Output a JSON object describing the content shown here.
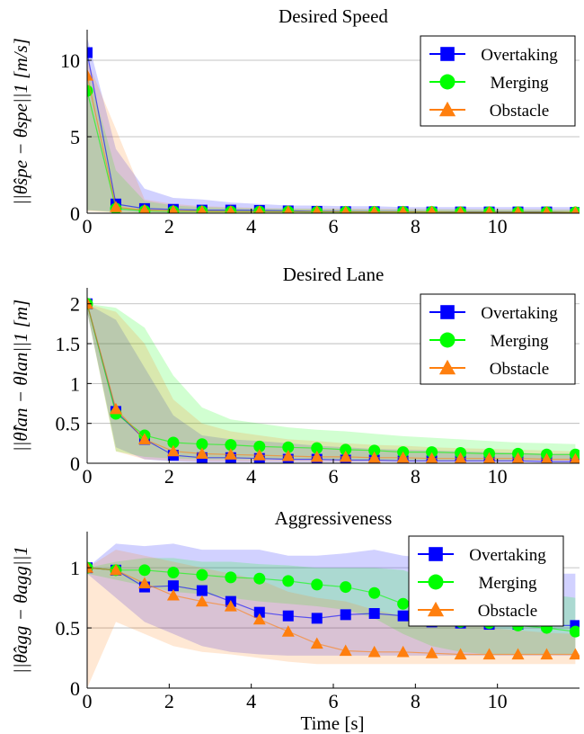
{
  "chart_data": [
    {
      "type": "line",
      "title": "Desired Speed",
      "ylabel": "||θ̂spe − θspe||1 [m/s]",
      "xlabel": "",
      "xlim": [
        0,
        12
      ],
      "ylim": [
        0,
        12
      ],
      "xticks": [
        0,
        2,
        4,
        6,
        8,
        10
      ],
      "yticks": [
        0,
        5,
        10
      ],
      "grid": "horizontal",
      "legend_position": "top-right",
      "series": [
        {
          "name": "Overtaking",
          "color": "#0000ff",
          "marker": "square",
          "x": [
            0,
            0.7,
            1.4,
            2.1,
            2.8,
            3.5,
            4.2,
            4.9,
            5.6,
            6.3,
            7.0,
            7.7,
            8.4,
            9.1,
            9.8,
            10.5,
            11.2,
            11.9
          ],
          "y": [
            10.5,
            0.6,
            0.3,
            0.25,
            0.2,
            0.2,
            0.18,
            0.15,
            0.12,
            0.1,
            0.1,
            0.1,
            0.08,
            0.08,
            0.08,
            0.08,
            0.08,
            0.05
          ],
          "band_lo": [
            0.2,
            0.1,
            0.05,
            0.05,
            0.05,
            0.05,
            0.05,
            0.05,
            0.05,
            0.05,
            0.05,
            0.05,
            0.05,
            0.05,
            0.05,
            0.05,
            0.05,
            0.05
          ],
          "band_hi": [
            11.5,
            4.2,
            1.6,
            1.0,
            0.9,
            0.7,
            0.6,
            0.5,
            0.5,
            0.45,
            0.45,
            0.4,
            0.4,
            0.4,
            0.4,
            0.4,
            0.4,
            0.4
          ]
        },
        {
          "name": "Merging",
          "color": "#00ff00",
          "marker": "circle",
          "x": [
            0,
            0.7,
            1.4,
            2.1,
            2.8,
            3.5,
            4.2,
            4.9,
            5.6,
            6.3,
            7.0,
            7.7,
            8.4,
            9.1,
            9.8,
            10.5,
            11.2,
            11.9
          ],
          "y": [
            8.0,
            0.3,
            0.15,
            0.12,
            0.12,
            0.1,
            0.1,
            0.1,
            0.08,
            0.08,
            0.08,
            0.08,
            0.08,
            0.06,
            0.06,
            0.06,
            0.06,
            0.06
          ],
          "band_lo": [
            0.2,
            0.05,
            0.03,
            0.03,
            0.03,
            0.03,
            0.03,
            0.03,
            0.03,
            0.03,
            0.03,
            0.03,
            0.03,
            0.03,
            0.03,
            0.03,
            0.03,
            0.03
          ],
          "band_hi": [
            9.5,
            2.8,
            0.8,
            0.5,
            0.4,
            0.35,
            0.3,
            0.3,
            0.28,
            0.26,
            0.25,
            0.25,
            0.24,
            0.24,
            0.23,
            0.23,
            0.22,
            0.22
          ]
        },
        {
          "name": "Obstacle",
          "color": "#ff7f0e",
          "marker": "triangle",
          "x": [
            0,
            0.7,
            1.4,
            2.1,
            2.8,
            3.5,
            4.2,
            4.9,
            5.6,
            6.3,
            7.0,
            7.7,
            8.4,
            9.1,
            9.8,
            10.5,
            11.2,
            11.9
          ],
          "y": [
            9.0,
            0.4,
            0.2,
            0.15,
            0.12,
            0.1,
            0.1,
            0.1,
            0.1,
            0.08,
            0.08,
            0.08,
            0.08,
            0.06,
            0.06,
            0.06,
            0.06,
            0.06
          ],
          "band_lo": [
            0.1,
            0.05,
            0.03,
            0.03,
            0.03,
            0.03,
            0.03,
            0.03,
            0.03,
            0.03,
            0.03,
            0.03,
            0.03,
            0.03,
            0.03,
            0.03,
            0.03,
            0.03
          ],
          "band_hi": [
            10.0,
            5.5,
            0.9,
            0.6,
            0.45,
            0.4,
            0.35,
            0.3,
            0.3,
            0.3,
            0.28,
            0.28,
            0.26,
            0.25,
            0.25,
            0.25,
            0.24,
            0.24
          ]
        }
      ]
    },
    {
      "type": "line",
      "title": "Desired Lane",
      "ylabel": "||θ̂lan − θlan||1 [m]",
      "xlabel": "",
      "xlim": [
        0,
        12
      ],
      "ylim": [
        0,
        2.2
      ],
      "xticks": [
        0,
        2,
        4,
        6,
        8,
        10
      ],
      "yticks": [
        0,
        0.5,
        1,
        1.5,
        2
      ],
      "grid": "horizontal",
      "legend_position": "top-right",
      "series": [
        {
          "name": "Overtaking",
          "color": "#0000ff",
          "marker": "square",
          "x": [
            0,
            0.7,
            1.4,
            2.1,
            2.8,
            3.5,
            4.2,
            4.9,
            5.6,
            6.3,
            7.0,
            7.7,
            8.4,
            9.1,
            9.8,
            10.5,
            11.2,
            11.9
          ],
          "y": [
            2.0,
            0.65,
            0.3,
            0.1,
            0.07,
            0.07,
            0.06,
            0.05,
            0.05,
            0.04,
            0.04,
            0.03,
            0.03,
            0.03,
            0.03,
            0.03,
            0.02,
            0.02
          ],
          "band_lo": [
            1.9,
            0.2,
            0.05,
            0.02,
            0.01,
            0.01,
            0.01,
            0.01,
            0.01,
            0.01,
            0.01,
            0.01,
            0.01,
            0.01,
            0.01,
            0.01,
            0.01,
            0.01
          ],
          "band_hi": [
            2.0,
            1.8,
            1.2,
            0.6,
            0.35,
            0.3,
            0.28,
            0.25,
            0.22,
            0.2,
            0.18,
            0.17,
            0.16,
            0.15,
            0.14,
            0.13,
            0.12,
            0.12
          ]
        },
        {
          "name": "Merging",
          "color": "#00ff00",
          "marker": "circle",
          "x": [
            0,
            0.7,
            1.4,
            2.1,
            2.8,
            3.5,
            4.2,
            4.9,
            5.6,
            6.3,
            7.0,
            7.7,
            8.4,
            9.1,
            9.8,
            10.5,
            11.2,
            11.9
          ],
          "y": [
            2.0,
            0.62,
            0.35,
            0.26,
            0.24,
            0.23,
            0.21,
            0.2,
            0.19,
            0.17,
            0.16,
            0.14,
            0.14,
            0.13,
            0.12,
            0.12,
            0.11,
            0.11
          ],
          "band_lo": [
            1.9,
            0.15,
            0.08,
            0.06,
            0.05,
            0.05,
            0.05,
            0.05,
            0.05,
            0.04,
            0.04,
            0.04,
            0.04,
            0.04,
            0.04,
            0.04,
            0.04,
            0.04
          ],
          "band_hi": [
            2.0,
            1.95,
            1.7,
            1.1,
            0.7,
            0.55,
            0.5,
            0.45,
            0.42,
            0.4,
            0.37,
            0.34,
            0.32,
            0.3,
            0.28,
            0.26,
            0.25,
            0.24
          ]
        },
        {
          "name": "Obstacle",
          "color": "#ff7f0e",
          "marker": "triangle",
          "x": [
            0,
            0.7,
            1.4,
            2.1,
            2.8,
            3.5,
            4.2,
            4.9,
            5.6,
            6.3,
            7.0,
            7.7,
            8.4,
            9.1,
            9.8,
            10.5,
            11.2,
            11.9
          ],
          "y": [
            2.0,
            0.68,
            0.3,
            0.15,
            0.12,
            0.11,
            0.1,
            0.09,
            0.08,
            0.08,
            0.07,
            0.07,
            0.06,
            0.06,
            0.06,
            0.06,
            0.05,
            0.05
          ],
          "band_lo": [
            1.9,
            0.15,
            0.05,
            0.03,
            0.02,
            0.02,
            0.02,
            0.02,
            0.02,
            0.02,
            0.02,
            0.02,
            0.02,
            0.02,
            0.02,
            0.02,
            0.02,
            0.02
          ],
          "band_hi": [
            2.0,
            1.9,
            1.5,
            0.8,
            0.5,
            0.4,
            0.35,
            0.3,
            0.28,
            0.25,
            0.23,
            0.22,
            0.2,
            0.19,
            0.18,
            0.17,
            0.16,
            0.15
          ]
        }
      ]
    },
    {
      "type": "line",
      "title": "Aggressiveness",
      "ylabel": "||θ̂agg − θagg||1",
      "xlabel": "Time [s]",
      "xlim": [
        0,
        12
      ],
      "ylim": [
        0,
        1.3
      ],
      "xticks": [
        0,
        2,
        4,
        6,
        8,
        10
      ],
      "yticks": [
        0,
        0.5,
        1
      ],
      "grid": "horizontal",
      "legend_position": "top-right",
      "series": [
        {
          "name": "Overtaking",
          "color": "#0000ff",
          "marker": "square",
          "x": [
            0,
            0.7,
            1.4,
            2.1,
            2.8,
            3.5,
            4.2,
            4.9,
            5.6,
            6.3,
            7.0,
            7.7,
            8.4,
            9.1,
            9.8,
            10.5,
            11.2,
            11.9
          ],
          "y": [
            1.0,
            0.98,
            0.84,
            0.85,
            0.81,
            0.72,
            0.63,
            0.6,
            0.58,
            0.61,
            0.62,
            0.6,
            0.55,
            0.54,
            0.53,
            0.53,
            0.52,
            0.52
          ],
          "band_lo": [
            0.95,
            0.75,
            0.55,
            0.45,
            0.35,
            0.3,
            0.28,
            0.27,
            0.27,
            0.27,
            0.27,
            0.27,
            0.27,
            0.27,
            0.27,
            0.27,
            0.27,
            0.27
          ],
          "band_hi": [
            1.0,
            1.2,
            1.18,
            1.2,
            1.15,
            1.15,
            1.15,
            1.1,
            1.1,
            1.12,
            1.15,
            1.1,
            1.08,
            1.05,
            1.0,
            0.95,
            0.95,
            0.95
          ]
        },
        {
          "name": "Merging",
          "color": "#00ff00",
          "marker": "circle",
          "x": [
            0,
            0.7,
            1.4,
            2.1,
            2.8,
            3.5,
            4.2,
            4.9,
            5.6,
            6.3,
            7.0,
            7.7,
            8.4,
            9.1,
            9.8,
            10.5,
            11.2,
            11.9
          ],
          "y": [
            1.0,
            0.98,
            0.98,
            0.96,
            0.94,
            0.92,
            0.91,
            0.89,
            0.86,
            0.84,
            0.79,
            0.7,
            0.6,
            0.55,
            0.54,
            0.52,
            0.5,
            0.47
          ],
          "band_lo": [
            0.95,
            0.9,
            0.85,
            0.8,
            0.78,
            0.75,
            0.72,
            0.7,
            0.68,
            0.65,
            0.58,
            0.45,
            0.35,
            0.3,
            0.28,
            0.28,
            0.28,
            0.28
          ],
          "band_hi": [
            1.0,
            1.05,
            1.08,
            1.08,
            1.05,
            1.05,
            1.03,
            1.02,
            1.0,
            1.0,
            1.0,
            0.98,
            0.9,
            0.85,
            0.82,
            0.8,
            0.78,
            0.75
          ]
        },
        {
          "name": "Obstacle",
          "color": "#ff7f0e",
          "marker": "triangle",
          "x": [
            0,
            0.7,
            1.4,
            2.1,
            2.8,
            3.5,
            4.2,
            4.9,
            5.6,
            6.3,
            7.0,
            7.7,
            8.4,
            9.1,
            9.8,
            10.5,
            11.2,
            11.9
          ],
          "y": [
            1.0,
            0.98,
            0.87,
            0.77,
            0.72,
            0.68,
            0.57,
            0.47,
            0.37,
            0.31,
            0.3,
            0.3,
            0.29,
            0.28,
            0.28,
            0.28,
            0.28,
            0.28
          ],
          "band_lo": [
            0.0,
            0.55,
            0.45,
            0.35,
            0.3,
            0.28,
            0.25,
            0.22,
            0.2,
            0.2,
            0.2,
            0.2,
            0.2,
            0.2,
            0.2,
            0.2,
            0.2,
            0.2
          ],
          "band_hi": [
            1.0,
            1.15,
            1.1,
            1.05,
            1.0,
            0.95,
            0.9,
            0.8,
            0.75,
            0.72,
            0.65,
            0.6,
            0.6,
            0.55,
            0.5,
            0.48,
            0.46,
            0.45
          ]
        }
      ]
    }
  ]
}
